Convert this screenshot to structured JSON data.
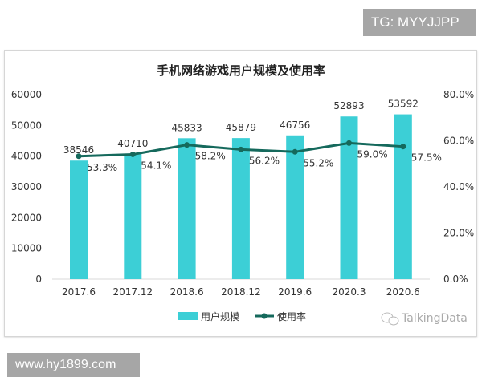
{
  "watermark_top": "TG: MYYJJPP",
  "watermark_bottom": "www.hy1899.com",
  "source_logo": "TalkingData",
  "chart_data": {
    "type": "bar+line",
    "title": "手机网络游戏用户规模及使用率",
    "categories": [
      "2017.6",
      "2017.12",
      "2018.6",
      "2018.12",
      "2019.6",
      "2020.3",
      "2020.6"
    ],
    "series": [
      {
        "name": "用户规模",
        "type": "bar",
        "axis": "left",
        "color": "#3ccfd6",
        "values": [
          38546,
          40710,
          45833,
          45879,
          46756,
          52893,
          53592
        ],
        "labels": [
          "38546",
          "40710",
          "45833",
          "45879",
          "46756",
          "52893",
          "53592"
        ]
      },
      {
        "name": "使用率",
        "type": "line",
        "axis": "right",
        "color": "#15695c",
        "values": [
          53.3,
          54.1,
          58.2,
          56.2,
          55.2,
          59.0,
          57.5
        ],
        "labels": [
          "53.3%",
          "54.1%",
          "58.2%",
          "56.2%",
          "55.2%",
          "59.0%",
          "57.5%"
        ]
      }
    ],
    "y_left": {
      "range": [
        0,
        60000
      ],
      "ticks": [
        "0",
        "10000",
        "20000",
        "30000",
        "40000",
        "50000",
        "60000"
      ]
    },
    "y_right": {
      "range": [
        0,
        80
      ],
      "ticks": [
        "0.0%",
        "20.0%",
        "40.0%",
        "60.0%",
        "80.0%"
      ]
    },
    "grid": false,
    "legend": "bottom"
  }
}
